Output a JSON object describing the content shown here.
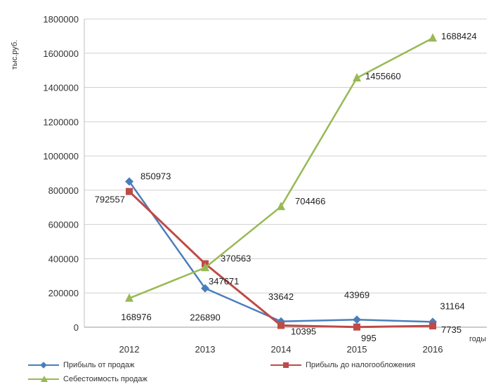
{
  "chart_data": {
    "type": "line",
    "ylabel": "тыс.руб.",
    "xlabel": "годы",
    "x": [
      "2012",
      "2013",
      "2014",
      "2015",
      "2016"
    ],
    "ylim": [
      0,
      1800000
    ],
    "yticks": [
      0,
      200000,
      400000,
      600000,
      800000,
      1000000,
      1200000,
      1400000,
      1600000,
      1800000
    ],
    "grid": true,
    "legend_position": "bottom",
    "series": [
      {
        "name": "Прибыль от продаж",
        "color": "#4a7ebb",
        "marker": "diamond",
        "values": [
          850973,
          226890,
          33642,
          43969,
          31164
        ],
        "labels": [
          "850973",
          "226890",
          "33642",
          "43969",
          "31164"
        ]
      },
      {
        "name": "Прибыль до налогообложения",
        "color": "#be4b48",
        "marker": "square",
        "values": [
          792557,
          370563,
          10395,
          995,
          7735
        ],
        "labels": [
          "792557",
          "370563",
          "10395",
          "995",
          "7735"
        ]
      },
      {
        "name": "Себестоимость продаж",
        "color": "#98b954",
        "marker": "triangle",
        "values": [
          168976,
          347671,
          704466,
          1455660,
          1688424
        ],
        "labels": [
          "168976",
          "347671",
          "704466",
          "1455660",
          "1688424"
        ]
      }
    ]
  }
}
